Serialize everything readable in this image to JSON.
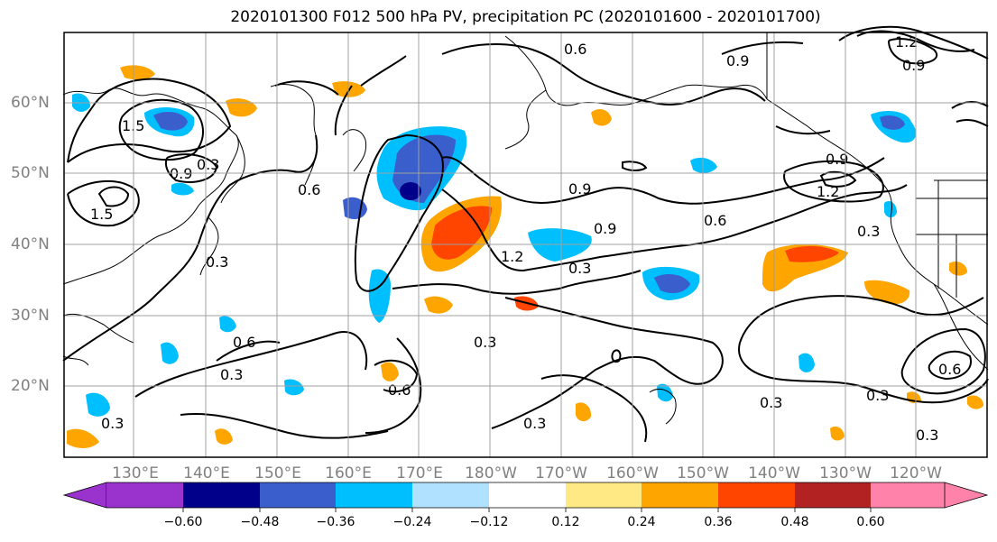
{
  "title": "2020101300 F012 500 hPa PV, precipitation PC (2020101600 - 2020101700)",
  "latitude_labels": [
    "60°N",
    "50°N",
    "40°N",
    "30°N",
    "20°N"
  ],
  "longitude_labels": [
    "130°E",
    "140°E",
    "150°E",
    "160°E",
    "170°E",
    "180°W",
    "170°W",
    "160°W",
    "150°W",
    "140°W",
    "130°W",
    "120°W"
  ],
  "contour_labels": [
    "0.3",
    "0.6",
    "0.9",
    "1.2",
    "1.5"
  ],
  "colorbar": {
    "ticks": [
      "−0.60",
      "−0.48",
      "−0.36",
      "−0.24",
      "−0.12",
      "0.12",
      "0.24",
      "0.36",
      "0.48",
      "0.60"
    ],
    "colors": [
      "#9a32cd",
      "#00008b",
      "#3a5fcd",
      "#00bfff",
      "#b0e2ff",
      "#ffffff",
      "#ffe984",
      "#ffa500",
      "#ff4500",
      "#b22222",
      "#ff82ab"
    ]
  }
}
